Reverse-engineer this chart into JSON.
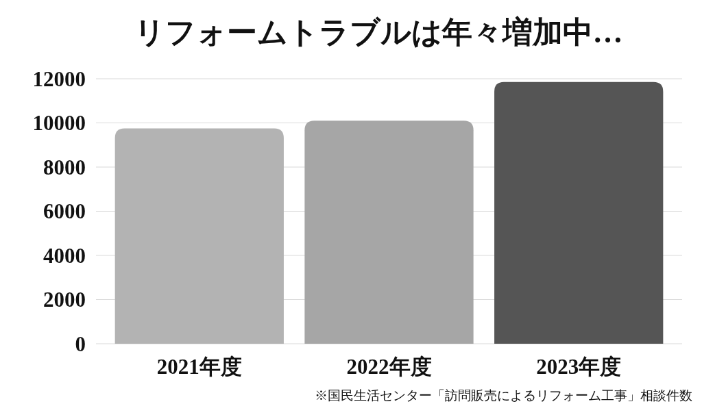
{
  "chart_data": {
    "type": "bar",
    "title": "リフォームトラブルは年々増加中…",
    "categories": [
      "2021年度",
      "2022年度",
      "2023年度"
    ],
    "values": [
      9750,
      10100,
      11850
    ],
    "colors": [
      "#b3b3b3",
      "#a6a6a6",
      "#555555"
    ],
    "ylim": [
      0,
      12000
    ],
    "yticks": [
      0,
      2000,
      4000,
      6000,
      8000,
      10000,
      12000
    ],
    "grid": "y",
    "annotations": [
      "※国民生活センター「訪問販売によるリフォーム工事」相談件数"
    ]
  }
}
